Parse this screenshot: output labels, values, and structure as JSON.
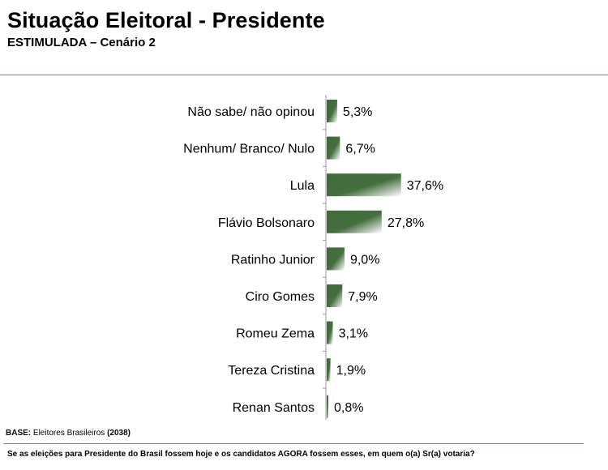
{
  "header": {
    "title": "Situação Eleitoral - Presidente",
    "subtitle": "ESTIMULADA – Cenário 2"
  },
  "footer": {
    "base_label": "BASE:",
    "base_text": "Eleitores Brasileiros",
    "base_count": "(2038)",
    "question": "Se as eleições para Presidente do Brasil fossem hoje e os candidatos AGORA fossem esses, em quem o(a) Sr(a) votaria?"
  },
  "colors": {
    "bar_dark": "#3f6a3a",
    "bar_light": "#ffffff",
    "axis": "#9a9a9a",
    "rule": "#7a8f6e"
  },
  "chart_data": {
    "type": "bar",
    "orientation": "horizontal",
    "categories": [
      "Não sabe/ não opinou",
      "Nenhum/ Branco/ Nulo",
      "Lula",
      "Flávio Bolsonaro",
      "Ratinho Junior",
      "Ciro Gomes",
      "Romeu Zema",
      "Tereza Cristina",
      "Renan Santos"
    ],
    "values": [
      5.3,
      6.7,
      37.6,
      27.8,
      9.0,
      7.9,
      3.1,
      1.9,
      0.8
    ],
    "data_labels": [
      "5,3%",
      "6,7%",
      "37,6%",
      "27,8%",
      "9,0%",
      "7,9%",
      "3,1%",
      "1,9%",
      "0,8%"
    ],
    "unit": "%",
    "xlim": [
      0,
      40
    ],
    "grid": false,
    "legend": "none"
  }
}
